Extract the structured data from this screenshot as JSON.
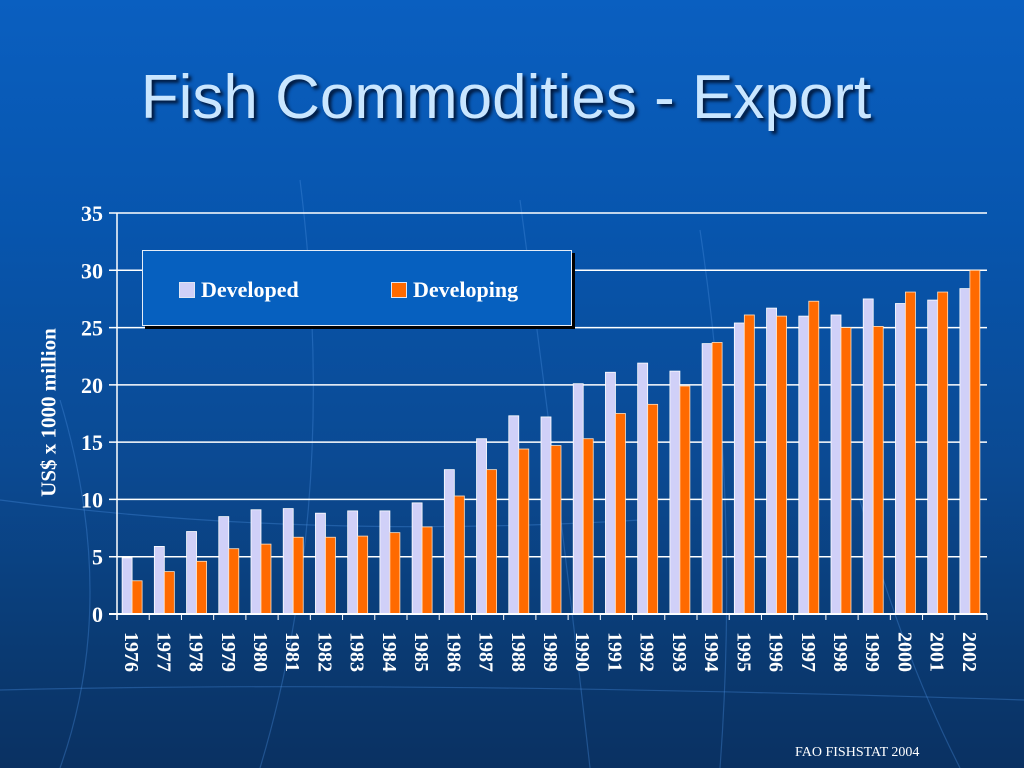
{
  "slide": {
    "title": "Fish Commodities -  Export",
    "footer": "FAO FISHSTAT 2004"
  },
  "legend": {
    "items": [
      {
        "label": "Developed",
        "color": "#d0d0f8"
      },
      {
        "label": "Developing",
        "color": "#ff6a00"
      }
    ]
  },
  "axis": {
    "ylabel": "US$ x 1000 million",
    "yticks": [
      0,
      5,
      10,
      15,
      20,
      25,
      30,
      35
    ]
  },
  "colors": {
    "developed": "#d0d0f8",
    "developing": "#ff6a00",
    "gridline": "#ffffff",
    "title": "#c9e6ff"
  },
  "chart_data": {
    "type": "bar",
    "title": "Fish Commodities -  Export",
    "xlabel": "",
    "ylabel": "US$ x 1000 million",
    "ylim": [
      0,
      35
    ],
    "grid": true,
    "legend_position": "upper-left (inside plot)",
    "categories": [
      "1976",
      "1977",
      "1978",
      "1979",
      "1980",
      "1981",
      "1982",
      "1983",
      "1984",
      "1985",
      "1986",
      "1987",
      "1988",
      "1989",
      "1990",
      "1991",
      "1992",
      "1993",
      "1994",
      "1995",
      "1996",
      "1997",
      "1998",
      "1999",
      "2000",
      "2001",
      "2002"
    ],
    "series": [
      {
        "name": "Developed",
        "color": "#d0d0f8",
        "values": [
          4.9,
          5.9,
          7.2,
          8.5,
          9.1,
          9.2,
          8.8,
          9.0,
          9.0,
          9.7,
          12.6,
          15.3,
          17.3,
          17.2,
          20.1,
          21.1,
          21.9,
          21.2,
          23.6,
          25.4,
          26.7,
          26.0,
          26.1,
          27.5,
          27.1,
          27.4,
          28.4
        ]
      },
      {
        "name": "Developing",
        "color": "#ff6a00",
        "values": [
          2.9,
          3.7,
          4.6,
          5.7,
          6.1,
          6.7,
          6.7,
          6.8,
          7.1,
          7.6,
          10.3,
          12.6,
          14.4,
          14.7,
          15.3,
          17.5,
          18.3,
          19.9,
          23.7,
          26.1,
          26.0,
          27.3,
          25.0,
          25.1,
          28.1,
          28.1,
          30.0
        ]
      }
    ],
    "source": "FAO FISHSTAT 2004"
  }
}
